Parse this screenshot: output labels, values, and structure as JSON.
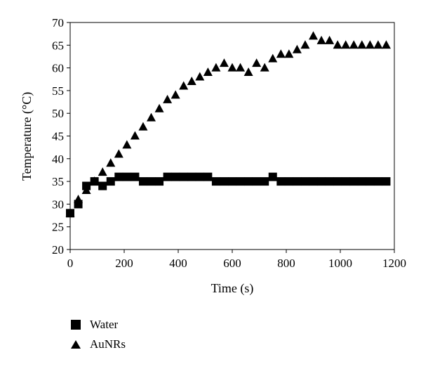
{
  "chart_data": {
    "type": "scatter",
    "xlabel": "Time (s)",
    "ylabel": "Temperature (°C)",
    "xlim": [
      0,
      1200
    ],
    "ylim": [
      20,
      70
    ],
    "xticks": [
      0,
      200,
      400,
      600,
      800,
      1000,
      1200
    ],
    "yticks": [
      20,
      25,
      30,
      35,
      40,
      45,
      50,
      55,
      60,
      65,
      70
    ],
    "grid": false,
    "legend_position": "bottom-left",
    "series": [
      {
        "name": "Water",
        "marker": "square",
        "color": "#000000",
        "x": [
          0,
          30,
          60,
          90,
          120,
          150,
          180,
          210,
          240,
          270,
          300,
          330,
          360,
          390,
          420,
          450,
          480,
          510,
          540,
          570,
          600,
          630,
          660,
          690,
          720,
          750,
          780,
          810,
          840,
          870,
          900,
          930,
          960,
          990,
          1020,
          1050,
          1080,
          1110,
          1140,
          1170
        ],
        "y": [
          28,
          30,
          34,
          35,
          34,
          35,
          36,
          36,
          36,
          35,
          35,
          35,
          36,
          36,
          36,
          36,
          36,
          36,
          35,
          35,
          35,
          35,
          35,
          35,
          35,
          36,
          35,
          35,
          35,
          35,
          35,
          35,
          35,
          35,
          35,
          35,
          35,
          35,
          35,
          35
        ]
      },
      {
        "name": "AuNRs",
        "marker": "triangle",
        "color": "#000000",
        "x": [
          0,
          30,
          60,
          90,
          120,
          150,
          180,
          210,
          240,
          270,
          300,
          330,
          360,
          390,
          420,
          450,
          480,
          510,
          540,
          570,
          600,
          630,
          660,
          690,
          720,
          750,
          780,
          810,
          840,
          870,
          900,
          930,
          960,
          990,
          1020,
          1050,
          1080,
          1110,
          1140,
          1170
        ],
        "y": [
          28,
          31,
          33,
          35,
          37,
          39,
          41,
          43,
          45,
          47,
          49,
          51,
          53,
          54,
          56,
          57,
          58,
          59,
          60,
          61,
          60,
          60,
          59,
          61,
          60,
          62,
          63,
          63,
          64,
          65,
          67,
          66,
          66,
          65,
          65,
          65,
          65,
          65,
          65,
          65
        ]
      }
    ]
  }
}
